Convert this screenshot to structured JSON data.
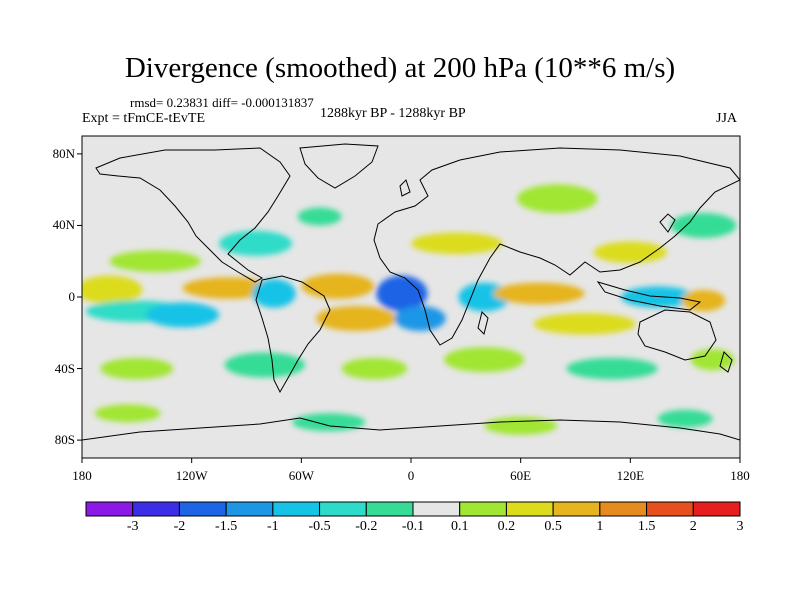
{
  "title": "Divergence (smoothed) at 200 hPa (10**6 m/s)",
  "stats": "rmsd= 0.23831  diff= -0.000131837",
  "experiment": "Expt = tFmCE-tEvTE",
  "period": "1288kyr BP - 1288kyr BP",
  "season": "JJA",
  "map": {
    "projection": "cylindrical equidistant",
    "lon_range": [
      -180,
      180
    ],
    "lat_range": [
      -90,
      90
    ],
    "lat_ticks": [
      {
        "value": 80,
        "label": "80N"
      },
      {
        "value": 40,
        "label": "40N"
      },
      {
        "value": 0,
        "label": "0"
      },
      {
        "value": -40,
        "label": "40S"
      },
      {
        "value": -80,
        "label": "80S"
      }
    ],
    "lon_ticks": [
      {
        "value": -180,
        "label": "180"
      },
      {
        "value": -120,
        "label": "120W"
      },
      {
        "value": -60,
        "label": "60W"
      },
      {
        "value": 0,
        "label": "0"
      },
      {
        "value": 60,
        "label": "60E"
      },
      {
        "value": 120,
        "label": "120E"
      },
      {
        "value": 180,
        "label": "180"
      }
    ],
    "background_color": "#e6e6e6",
    "coastline_color": "#000000"
  },
  "colorbar": {
    "labels": [
      "-3",
      "-2",
      "-1.5",
      "-1",
      "-0.5",
      "-0.2",
      "-0.1",
      "0.1",
      "0.2",
      "0.5",
      "1",
      "1.5",
      "2",
      "3"
    ],
    "colors": [
      "#8b1ae6",
      "#3c2ee6",
      "#1e64e6",
      "#1e96e6",
      "#14c3e6",
      "#2ddcc8",
      "#36dc96",
      "#e6e6e6",
      "#a0e632",
      "#dcdc1e",
      "#e6b41e",
      "#e68c1e",
      "#e6501e",
      "#e61e1e"
    ]
  },
  "field_blobs": [
    {
      "lon": -165,
      "lat": 4,
      "rx": 18,
      "ry": 8,
      "level": 9
    },
    {
      "lon": -150,
      "lat": -8,
      "rx": 28,
      "ry": 6,
      "level": 5
    },
    {
      "lon": -125,
      "lat": -10,
      "rx": 20,
      "ry": 7,
      "level": 4
    },
    {
      "lon": -100,
      "lat": 5,
      "rx": 25,
      "ry": 6,
      "level": 10
    },
    {
      "lon": -75,
      "lat": 2,
      "rx": 12,
      "ry": 8,
      "level": 4
    },
    {
      "lon": -40,
      "lat": 6,
      "rx": 20,
      "ry": 7,
      "level": 10
    },
    {
      "lon": -30,
      "lat": -12,
      "rx": 22,
      "ry": 7,
      "level": 10
    },
    {
      "lon": -5,
      "lat": 2,
      "rx": 14,
      "ry": 10,
      "level": 2
    },
    {
      "lon": 5,
      "lat": -12,
      "rx": 14,
      "ry": 7,
      "level": 3
    },
    {
      "lon": 40,
      "lat": 0,
      "rx": 14,
      "ry": 8,
      "level": 4
    },
    {
      "lon": 70,
      "lat": 2,
      "rx": 25,
      "ry": 6,
      "level": 10
    },
    {
      "lon": 95,
      "lat": -15,
      "rx": 28,
      "ry": 6,
      "level": 9
    },
    {
      "lon": 135,
      "lat": 0,
      "rx": 20,
      "ry": 6,
      "level": 4
    },
    {
      "lon": 160,
      "lat": -2,
      "rx": 12,
      "ry": 6,
      "level": 10
    },
    {
      "lon": -140,
      "lat": 20,
      "rx": 25,
      "ry": 6,
      "level": 8
    },
    {
      "lon": -85,
      "lat": 30,
      "rx": 20,
      "ry": 7,
      "level": 5
    },
    {
      "lon": -50,
      "lat": 45,
      "rx": 12,
      "ry": 5,
      "level": 6
    },
    {
      "lon": 25,
      "lat": 30,
      "rx": 25,
      "ry": 6,
      "level": 9
    },
    {
      "lon": 80,
      "lat": 55,
      "rx": 22,
      "ry": 8,
      "level": 8
    },
    {
      "lon": 120,
      "lat": 25,
      "rx": 20,
      "ry": 6,
      "level": 9
    },
    {
      "lon": 160,
      "lat": 40,
      "rx": 18,
      "ry": 7,
      "level": 6
    },
    {
      "lon": -150,
      "lat": -40,
      "rx": 20,
      "ry": 6,
      "level": 8
    },
    {
      "lon": -80,
      "lat": -38,
      "rx": 22,
      "ry": 7,
      "level": 6
    },
    {
      "lon": -20,
      "lat": -40,
      "rx": 18,
      "ry": 6,
      "level": 8
    },
    {
      "lon": 40,
      "lat": -35,
      "rx": 22,
      "ry": 7,
      "level": 8
    },
    {
      "lon": 110,
      "lat": -40,
      "rx": 25,
      "ry": 6,
      "level": 6
    },
    {
      "lon": 165,
      "lat": -35,
      "rx": 12,
      "ry": 6,
      "level": 8
    },
    {
      "lon": -155,
      "lat": -65,
      "rx": 18,
      "ry": 5,
      "level": 8
    },
    {
      "lon": -45,
      "lat": -70,
      "rx": 20,
      "ry": 5,
      "level": 6
    },
    {
      "lon": 60,
      "lat": -72,
      "rx": 20,
      "ry": 5,
      "level": 8
    },
    {
      "lon": 150,
      "lat": -68,
      "rx": 15,
      "ry": 5,
      "level": 6
    }
  ]
}
